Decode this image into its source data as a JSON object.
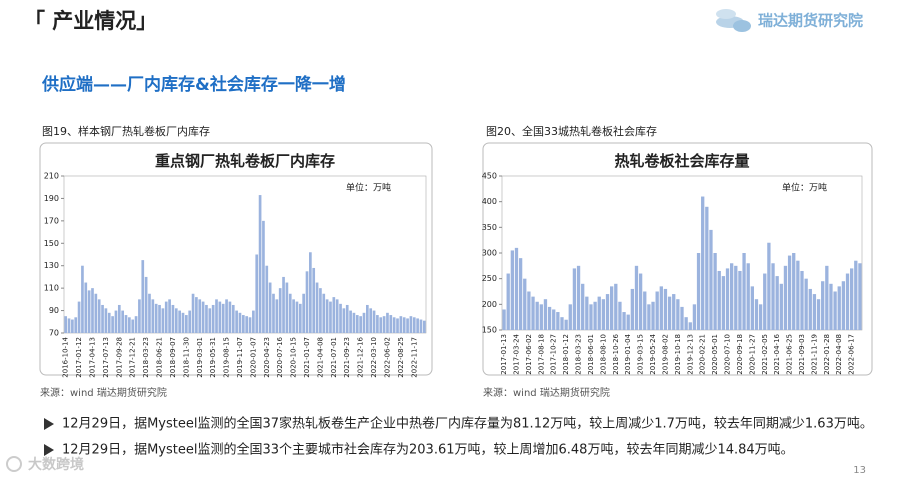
{
  "header": {
    "title": "「 产业情况」",
    "logo": "瑞达期货研究院"
  },
  "subtitle": "供应端——厂内库存&社会库存一降一增",
  "chart_data": [
    {
      "type": "bar",
      "caption": "图19、样本钢厂热轧卷板厂内库存",
      "title": "重点钢厂热轧卷板厂内库存",
      "unit": "单位：万吨",
      "source": "来源：wind   瑞达期货研究院",
      "color": "#9bb3de",
      "grid": false,
      "ylim": [
        70,
        210
      ],
      "yticks": [
        70,
        90,
        110,
        130,
        150,
        170,
        190,
        210
      ],
      "categories": [
        "2016-10-14",
        null,
        null,
        null,
        "2017-01-12",
        null,
        null,
        null,
        "2017-04-13",
        null,
        null,
        null,
        "2017-07-13",
        null,
        null,
        null,
        "2017-09-28",
        null,
        null,
        null,
        "2017-12-21",
        null,
        null,
        null,
        "2018-03-23",
        null,
        null,
        null,
        "2018-06-21",
        null,
        null,
        null,
        "2018-09-07",
        null,
        null,
        null,
        "2018-11-30",
        null,
        null,
        null,
        "2019-03-01",
        null,
        null,
        null,
        "2019-05-31",
        null,
        null,
        null,
        "2019-08-15",
        null,
        null,
        null,
        "2019-11-07",
        null,
        null,
        null,
        "2020-01-07",
        null,
        null,
        null,
        "2020-04-23",
        null,
        null,
        null,
        "2020-07-16",
        null,
        null,
        null,
        "2020-10-15",
        null,
        null,
        null,
        "2021-01-07",
        null,
        null,
        null,
        "2021-04-08",
        null,
        null,
        null,
        "2021-07-01",
        null,
        null,
        null,
        "2021-09-23",
        null,
        null,
        null,
        "2021-12-16",
        null,
        null,
        null,
        "2022-03-10",
        null,
        null,
        null,
        "2022-06-02",
        null,
        null,
        null,
        "2022-08-25",
        null,
        null,
        null,
        "2022-11-17",
        null,
        null,
        null
      ],
      "values": [
        85,
        83,
        82,
        84,
        98,
        130,
        115,
        108,
        110,
        105,
        100,
        95,
        92,
        88,
        85,
        90,
        95,
        90,
        86,
        84,
        82,
        85,
        100,
        135,
        120,
        105,
        100,
        96,
        95,
        92,
        98,
        100,
        95,
        92,
        90,
        88,
        86,
        90,
        105,
        102,
        100,
        98,
        95,
        92,
        95,
        100,
        98,
        96,
        100,
        98,
        95,
        90,
        88,
        86,
        85,
        84,
        90,
        140,
        193,
        170,
        130,
        115,
        105,
        100,
        110,
        120,
        115,
        105,
        100,
        98,
        96,
        105,
        125,
        142,
        128,
        115,
        110,
        105,
        100,
        98,
        102,
        100,
        96,
        92,
        95,
        90,
        88,
        86,
        85,
        88,
        95,
        92,
        90,
        86,
        84,
        85,
        88,
        86,
        84,
        83,
        85,
        84,
        83,
        85,
        84,
        83,
        82,
        81
      ]
    },
    {
      "type": "bar",
      "caption": "图20、全国33城热轧卷板社会库存",
      "title": "热轧卷板社会库存量",
      "unit": "单位：万吨",
      "source": "来源：wind   瑞达期货研究院",
      "color": "#9bb3de",
      "grid": false,
      "ylim": [
        150,
        450
      ],
      "yticks": [
        150,
        200,
        250,
        300,
        350,
        400,
        450
      ],
      "categories": [
        "2017-01-13",
        null,
        null,
        "2017-03-24",
        null,
        null,
        "2017-06-02",
        null,
        null,
        "2017-08-18",
        null,
        null,
        "2017-10-27",
        null,
        null,
        "2018-01-12",
        null,
        null,
        "2018-03-23",
        null,
        null,
        "2018-06-01",
        null,
        null,
        "2018-08-10",
        null,
        null,
        "2018-10-26",
        null,
        null,
        "2019-01-04",
        null,
        null,
        "2019-03-15",
        null,
        null,
        "2019-05-24",
        null,
        null,
        "2019-08-02",
        null,
        null,
        "2019-10-18",
        null,
        null,
        "2019-12-13",
        null,
        null,
        "2020-02-21",
        null,
        null,
        "2020-05-01",
        null,
        null,
        "2020-07-10",
        null,
        null,
        "2020-09-18",
        null,
        null,
        "2020-11-27",
        null,
        null,
        "2021-02-05",
        null,
        null,
        "2021-04-16",
        null,
        null,
        "2021-06-25",
        null,
        null,
        "2021-09-03",
        null,
        null,
        "2021-11-19",
        null,
        null,
        "2022-01-28",
        null,
        null,
        "2022-04-08",
        null,
        null,
        "2022-06-17",
        null,
        null
      ],
      "values": [
        190,
        260,
        305,
        310,
        290,
        250,
        225,
        215,
        205,
        200,
        210,
        195,
        190,
        185,
        175,
        170,
        200,
        270,
        275,
        240,
        215,
        200,
        205,
        215,
        210,
        220,
        235,
        240,
        205,
        185,
        180,
        230,
        275,
        260,
        225,
        200,
        205,
        225,
        235,
        230,
        215,
        220,
        210,
        195,
        175,
        165,
        200,
        300,
        410,
        390,
        345,
        300,
        265,
        255,
        270,
        280,
        275,
        265,
        300,
        280,
        235,
        210,
        200,
        260,
        320,
        280,
        255,
        240,
        275,
        295,
        300,
        285,
        265,
        250,
        230,
        220,
        210,
        245,
        275,
        240,
        225,
        235,
        245,
        260,
        270,
        285,
        280
      ]
    }
  ],
  "bullets": [
    "12月29日，据Mysteel监测的全国37家热轧板卷生产企业中热卷厂内库存量为81.12万吨，较上周减少1.7万吨，较去年同期减少1.63万吨。",
    "12月29日，据Mysteel监测的全国33个主要城市社会库存为203.61万吨，较上周增加6.48万吨，较去年同期减少14.84万吨。"
  ],
  "page_number": "13",
  "watermark": "大数跨境"
}
